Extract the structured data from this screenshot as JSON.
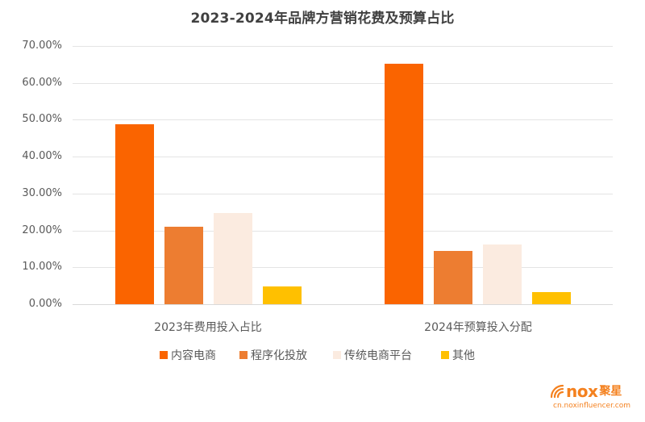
{
  "title": "2023-2024年品牌方营销花费及预算占比",
  "yaxis": {
    "ticks": [
      "0.00%",
      "10.00%",
      "20.00%",
      "30.00%",
      "40.00%",
      "50.00%",
      "60.00%",
      "70.00%"
    ]
  },
  "xaxis": {
    "labels": [
      "2023年费用投入占比",
      "2024年预算投入分配"
    ]
  },
  "legend": [
    {
      "label": "内容电商",
      "color": "#fa6400"
    },
    {
      "label": "程序化投放",
      "color": "#ed7d31"
    },
    {
      "label": "传统电商平台",
      "color": "#fbebe0"
    },
    {
      "label": "其他",
      "color": "#ffc000"
    }
  ],
  "logo": {
    "brand": "nox",
    "brand_cn": "聚星",
    "url": "cn.noxinfluencer.com"
  },
  "chart_data": {
    "type": "bar",
    "title": "2023-2024年品牌方营销花费及预算占比",
    "categories": [
      "2023年费用投入占比",
      "2024年预算投入分配"
    ],
    "series": [
      {
        "name": "内容电商",
        "color": "#fa6400",
        "values": [
          48.8,
          65.2
        ]
      },
      {
        "name": "程序化投放",
        "color": "#ed7d31",
        "values": [
          21.1,
          14.4
        ]
      },
      {
        "name": "传统电商平台",
        "color": "#fbebe0",
        "values": [
          24.7,
          16.2
        ]
      },
      {
        "name": "其他",
        "color": "#ffc000",
        "values": [
          4.9,
          3.3
        ]
      }
    ],
    "xlabel": "",
    "ylabel": "",
    "ylim": [
      0,
      70
    ],
    "yticks": [
      "0.00%",
      "10.00%",
      "20.00%",
      "30.00%",
      "40.00%",
      "50.00%",
      "60.00%",
      "70.00%"
    ],
    "value_format": "percent",
    "grid": true,
    "legend_position": "bottom"
  }
}
